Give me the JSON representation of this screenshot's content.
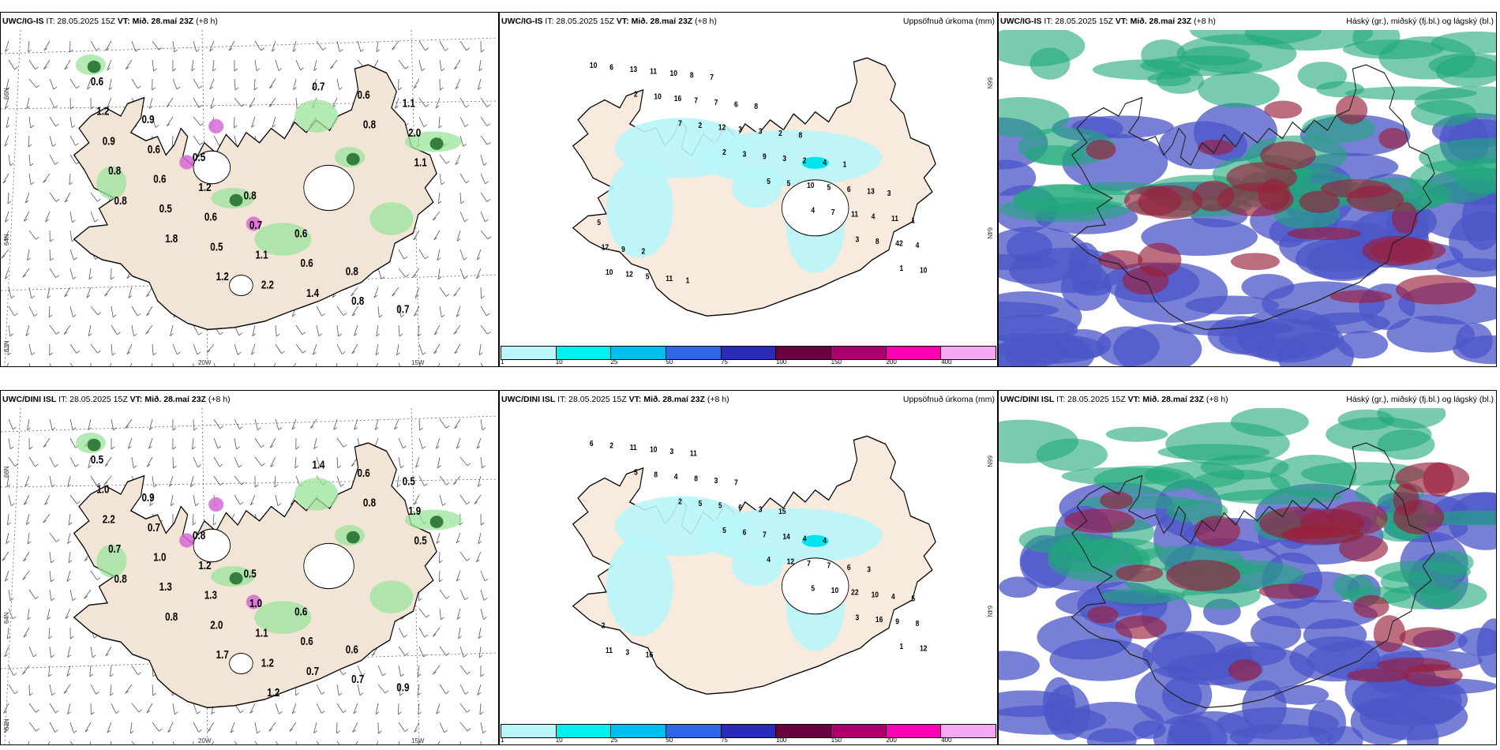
{
  "row1": {
    "col1": {
      "model": "UWC/IG-IS",
      "it": "IT: 28.05.2025 15Z",
      "vt": "VT: Mið. 28.maí 23Z",
      "lead": "(+8 h)",
      "axes": {
        "lat1": "66N",
        "lat2": "64N",
        "lat3": "63N",
        "lon1": "20W",
        "lon2": "15W"
      },
      "values": [
        "0.6",
        "0.9",
        "0.5",
        "0.8",
        "0.6",
        "0.8",
        "0.7",
        "1.2",
        "0.6",
        "1.2",
        "0.7",
        "0.6",
        "0.8",
        "1.1",
        "0.9",
        "0.6",
        "0.6",
        "1.1",
        "1.4",
        "0.6",
        "2.0",
        "0.8",
        "0.5",
        "0.5",
        "2.2",
        "0.7",
        "0.8",
        "1.1",
        "0.8",
        "1.8",
        "1.2"
      ]
    },
    "col2": {
      "model": "UWC/IG-IS",
      "it": "IT: 28.05.2025 15Z",
      "vt": "VT: Mið. 28.maí 23Z",
      "lead": "(+8 h)",
      "title": "Uppsöfnuð úrkoma (mm)",
      "axes": {
        "lat1": "66N",
        "lat2": "64N"
      },
      "values": [
        "10",
        "2",
        "7",
        "2",
        "5",
        "4",
        "3",
        "1",
        "6",
        "10",
        "2",
        "3",
        "5",
        "7",
        "8",
        "10",
        "13",
        "16",
        "12",
        "9",
        "10",
        "11",
        "42",
        "10",
        "11",
        "7",
        "3",
        "3",
        "5",
        "4",
        "4",
        "12",
        "10",
        "7",
        "3",
        "2",
        "6",
        "11",
        "17",
        "5",
        "8",
        "6",
        "2",
        "4",
        "13",
        "1",
        "9",
        "11",
        "7",
        "8",
        "8",
        "1",
        "3",
        "5",
        "2",
        "1"
      ],
      "legend": [
        "1",
        "10",
        "25",
        "50",
        "75",
        "100",
        "150",
        "200",
        "400"
      ]
    },
    "col3": {
      "model": "UWC/IG-IS",
      "it": "IT: 28.05.2025 15Z",
      "vt": "VT: Mið. 28.maí 23Z",
      "lead": "(+8 h)",
      "title": "Hásk‎ý (gr.), miðský (fj.bl.) og lágský (bl.)"
    }
  },
  "row2": {
    "col1": {
      "model": "UWC/DINI ISL",
      "it": "IT: 28.05.2025 15Z",
      "vt": "VT: Mið. 28.maí 23Z",
      "lead": "(+8 h)",
      "axes": {
        "lat1": "66N",
        "lat2": "64N",
        "lat3": "63N",
        "lon1": "20W",
        "lon2": "15W"
      },
      "values": [
        "0.5",
        "0.9",
        "0.8",
        "0.5",
        "0.6",
        "0.6",
        "0.9",
        "1.0",
        "0.7",
        "1.2",
        "1.0",
        "0.6",
        "0.7",
        "0.5",
        "2.2",
        "1.0",
        "1.3",
        "1.1",
        "0.7",
        "0.6",
        "1.9",
        "0.7",
        "1.3",
        "2.0",
        "1.2",
        "1.4",
        "0.8",
        "0.5",
        "0.8",
        "0.8",
        "1.7",
        "1.2"
      ]
    },
    "col2": {
      "model": "UWC/DINI ISL",
      "it": "IT: 28.05.2025 15Z",
      "vt": "VT: Mið. 28.maí 23Z",
      "lead": "(+8 h)",
      "title": "Uppsöfnuð úrkoma (mm)",
      "axes": {
        "lat1": "66N",
        "lat2": "64N"
      },
      "values": [
        "6",
        "5",
        "2",
        "5",
        "4",
        "5",
        "3",
        "1",
        "2",
        "8",
        "5",
        "6",
        "12",
        "10",
        "16",
        "12",
        "11",
        "4",
        "5",
        "7",
        "7",
        "22",
        "9",
        "11",
        "10",
        "8",
        "6",
        "14",
        "7",
        "10",
        "8",
        "3",
        "3",
        "3",
        "3",
        "4",
        "6",
        "4",
        "2",
        "16",
        "11",
        "7",
        "15",
        "4",
        "3",
        "5"
      ],
      "legend": [
        "1",
        "10",
        "25",
        "50",
        "75",
        "100",
        "150",
        "200",
        "400"
      ]
    },
    "col3": {
      "model": "UWC/DINI ISL",
      "it": "IT: 28.05.2025 15Z",
      "vt": "VT: Mið. 28.maí 23Z",
      "lead": "(+8 h)",
      "title": "Hásk‎ý (gr.), miðský (fj.bl.) og lágský (bl.)"
    }
  },
  "colors": {
    "legend": [
      "#b8f6f8",
      "#00f0f0",
      "#00bef2",
      "#2e66e6",
      "#2a2ab6",
      "#6a0040",
      "#ac0070",
      "#ff00b4",
      "#f6a8f2"
    ]
  }
}
